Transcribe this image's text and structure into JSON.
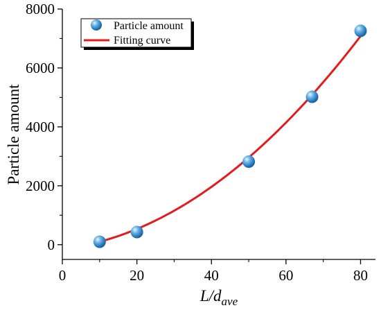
{
  "chart_data": {
    "type": "scatter",
    "title": "",
    "xlabel_main": "L/d",
    "xlabel_sub": "ave",
    "ylabel": "Particle amount",
    "xlim": [
      0,
      84
    ],
    "ylim": [
      -500,
      8000
    ],
    "xticks": [
      0,
      20,
      40,
      60,
      80
    ],
    "yticks": [
      0,
      2000,
      4000,
      6000,
      8000
    ],
    "xtick_labels": [
      "0",
      "20",
      "40",
      "60",
      "80"
    ],
    "ytick_labels": [
      "0",
      "2000",
      "4000",
      "6000",
      "8000"
    ],
    "grid": false,
    "legend_position": "top-left",
    "series": [
      {
        "name": "Particle amount",
        "kind": "scatter",
        "color": "#3b8fd0",
        "x": [
          10,
          20,
          50,
          67,
          80
        ],
        "y": [
          100,
          430,
          2820,
          5020,
          7260
        ]
      },
      {
        "name": "Fitting curve",
        "kind": "line",
        "color": "#e8191b",
        "fit": {
          "form": "quadratic",
          "a": 0.94,
          "b": 15.1,
          "c": -145
        },
        "x_range": [
          10,
          80
        ]
      }
    ]
  }
}
